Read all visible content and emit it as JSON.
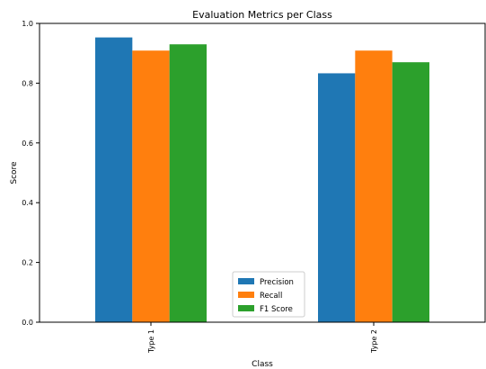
{
  "chart_data": {
    "type": "bar",
    "title": "Evaluation Metrics per Class",
    "xlabel": "Class",
    "ylabel": "Score",
    "categories": [
      "Type 1",
      "Type 2"
    ],
    "series": [
      {
        "name": "Precision",
        "color": "#1f77b4",
        "values": [
          0.953,
          0.833
        ]
      },
      {
        "name": "Recall",
        "color": "#ff7f0e",
        "values": [
          0.909,
          0.909
        ]
      },
      {
        "name": "F1 Score",
        "color": "#2ca02c",
        "values": [
          0.93,
          0.87
        ]
      }
    ],
    "ylim": [
      0,
      1.0
    ],
    "yticks": [
      "0.0",
      "0.2",
      "0.4",
      "0.6",
      "0.8",
      "1.0"
    ],
    "grid": false,
    "legend_position": "lower-center"
  }
}
